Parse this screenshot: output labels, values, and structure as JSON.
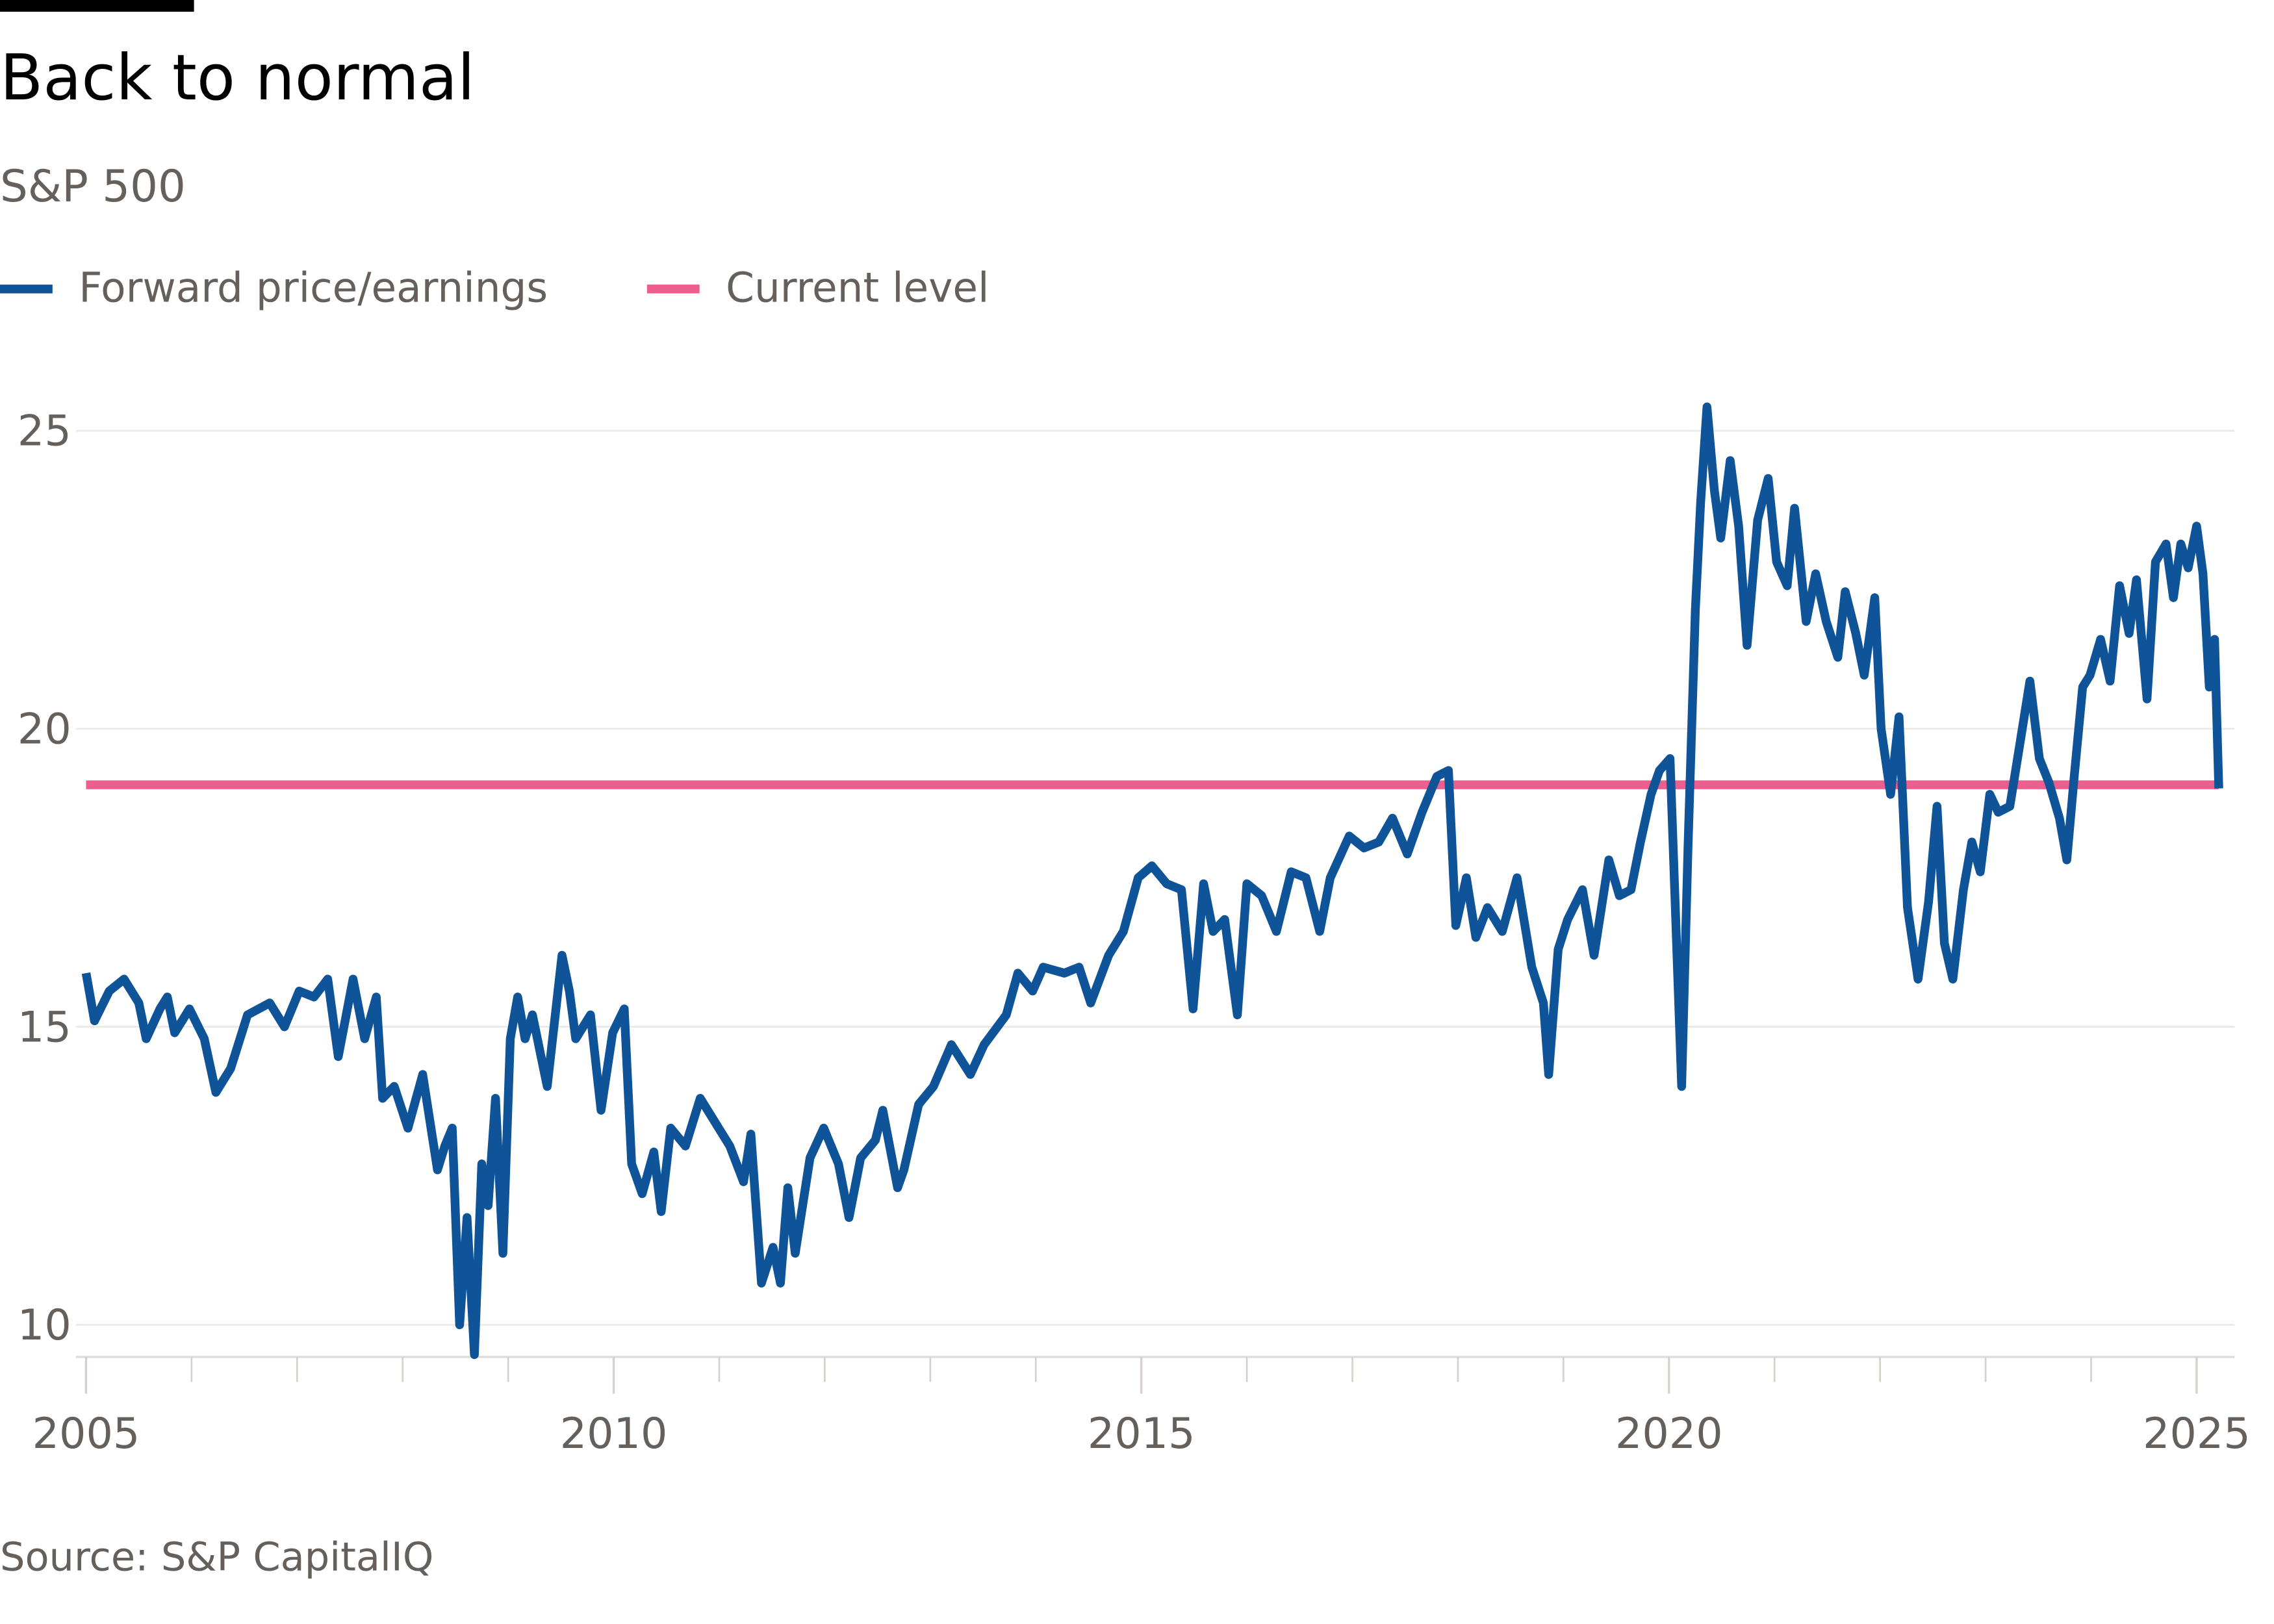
{
  "chart_data": {
    "type": "line",
    "title": "Back to normal",
    "subtitle": "S&P 500",
    "source": "Source: S&P CapitalIQ",
    "xlim": [
      2005,
      2025.36
    ],
    "xticks": [
      2005,
      2010,
      2015,
      2020,
      2025
    ],
    "x_minor_ticks": [
      2006,
      2007,
      2008,
      2009,
      2011,
      2012,
      2013,
      2014,
      2016,
      2017,
      2018,
      2019,
      2021,
      2022,
      2023,
      2024
    ],
    "ylim": [
      9.46,
      26
    ],
    "yticks": [
      10,
      15,
      20,
      25
    ],
    "grid": true,
    "series": [
      {
        "name": "Forward price/earnings",
        "color": "#0f5499",
        "x": [
          2005.0,
          2005.08,
          2005.22,
          2005.36,
          2005.5,
          2005.57,
          2005.7,
          2005.77,
          2005.84,
          2005.98,
          2006.12,
          2006.23,
          2006.37,
          2006.53,
          2006.74,
          2006.88,
          2007.02,
          2007.16,
          2007.29,
          2007.39,
          2007.53,
          2007.64,
          2007.75,
          2007.81,
          2007.92,
          2008.05,
          2008.19,
          2008.33,
          2008.4,
          2008.47,
          2008.54,
          2008.61,
          2008.68,
          2008.75,
          2008.81,
          2008.88,
          2008.95,
          2009.02,
          2009.09,
          2009.16,
          2009.23,
          2009.37,
          2009.51,
          2009.58,
          2009.64,
          2009.78,
          2009.88,
          2009.99,
          2010.1,
          2010.17,
          2010.27,
          2010.38,
          2010.45,
          2010.54,
          2010.68,
          2010.82,
          2010.96,
          2011.1,
          2011.23,
          2011.3,
          2011.4,
          2011.51,
          2011.58,
          2011.65,
          2011.72,
          2011.86,
          2011.99,
          2012.13,
          2012.23,
          2012.34,
          2012.48,
          2012.55,
          2012.69,
          2012.75,
          2012.89,
          2013.03,
          2013.2,
          2013.38,
          2013.51,
          2013.72,
          2013.83,
          2013.97,
          2014.07,
          2014.27,
          2014.41,
          2014.52,
          2014.69,
          2014.83,
          2014.97,
          2015.1,
          2015.24,
          2015.38,
          2015.49,
          2015.59,
          2015.68,
          2015.79,
          2015.91,
          2016.0,
          2016.14,
          2016.28,
          2016.42,
          2016.56,
          2016.69,
          2016.79,
          2016.97,
          2017.11,
          2017.25,
          2017.38,
          2017.52,
          2017.66,
          2017.8,
          2017.91,
          2017.98,
          2018.08,
          2018.17,
          2018.28,
          2018.42,
          2018.56,
          2018.7,
          2018.81,
          2018.86,
          2018.95,
          2019.04,
          2019.18,
          2019.29,
          2019.43,
          2019.53,
          2019.64,
          2019.73,
          2019.83,
          2019.91,
          2020.01,
          2020.07,
          2020.12,
          2020.18,
          2020.25,
          2020.3,
          2020.36,
          2020.43,
          2020.49,
          2020.58,
          2020.66,
          2020.74,
          2020.84,
          2020.94,
          2021.02,
          2021.12,
          2021.19,
          2021.3,
          2021.39,
          2021.49,
          2021.6,
          2021.67,
          2021.77,
          2021.85,
          2021.95,
          2022.01,
          2022.1,
          2022.18,
          2022.26,
          2022.36,
          2022.46,
          2022.54,
          2022.61,
          2022.69,
          2022.79,
          2022.87,
          2022.95,
          2023.04,
          2023.12,
          2023.23,
          2023.33,
          2023.42,
          2023.51,
          2023.6,
          2023.7,
          2023.77,
          2023.84,
          2023.92,
          2023.99,
          2024.09,
          2024.18,
          2024.27,
          2024.36,
          2024.43,
          2024.53,
          2024.61,
          2024.71,
          2024.78,
          2024.85,
          2024.92,
          2025.0,
          2025.06,
          2025.12,
          2025.17,
          2025.21
        ],
        "values": [
          15.9,
          15.1,
          15.6,
          15.8,
          15.4,
          14.8,
          15.3,
          15.5,
          14.9,
          15.3,
          14.8,
          13.9,
          14.3,
          15.2,
          15.4,
          15.0,
          15.6,
          15.5,
          15.8,
          14.5,
          15.8,
          14.8,
          15.5,
          13.8,
          14.0,
          13.3,
          14.2,
          12.6,
          13.0,
          13.3,
          10.0,
          11.8,
          9.5,
          12.7,
          12.0,
          13.8,
          11.2,
          14.8,
          15.5,
          14.8,
          15.2,
          14.0,
          16.2,
          15.6,
          14.8,
          15.2,
          13.6,
          14.9,
          15.3,
          12.7,
          12.2,
          12.9,
          11.9,
          13.3,
          13.0,
          13.8,
          13.4,
          13.0,
          12.4,
          13.2,
          10.7,
          11.3,
          10.7,
          12.3,
          11.2,
          12.8,
          13.3,
          12.7,
          11.8,
          12.8,
          13.1,
          13.6,
          12.3,
          12.6,
          13.7,
          14.0,
          14.7,
          14.2,
          14.7,
          15.2,
          15.9,
          15.6,
          16.0,
          15.9,
          16.0,
          15.4,
          16.2,
          16.6,
          17.5,
          17.7,
          17.4,
          17.3,
          15.3,
          17.4,
          16.6,
          16.8,
          15.2,
          17.4,
          17.2,
          16.6,
          17.6,
          17.5,
          16.6,
          17.5,
          18.2,
          18.0,
          18.1,
          18.5,
          17.9,
          18.6,
          19.2,
          19.3,
          16.7,
          17.5,
          16.5,
          17.0,
          16.6,
          17.5,
          16.0,
          15.4,
          14.2,
          16.3,
          16.8,
          17.3,
          16.2,
          17.8,
          17.2,
          17.3,
          18.1,
          18.9,
          19.3,
          19.5,
          16.5,
          14.0,
          18.0,
          22.0,
          23.8,
          25.4,
          24.0,
          23.2,
          24.5,
          23.4,
          21.4,
          23.5,
          24.2,
          22.8,
          22.4,
          23.7,
          21.8,
          22.6,
          21.8,
          21.2,
          22.3,
          21.6,
          20.9,
          22.2,
          20.0,
          18.9,
          20.2,
          17.0,
          15.8,
          17.1,
          18.7,
          16.4,
          15.8,
          17.3,
          18.1,
          17.6,
          18.9,
          18.6,
          18.7,
          19.8,
          20.8,
          19.5,
          19.1,
          18.5,
          17.8,
          19.2,
          20.7,
          20.9,
          21.5,
          20.8,
          22.4,
          21.6,
          22.5,
          20.5,
          22.8,
          23.1,
          22.2,
          23.1,
          22.7,
          23.4,
          22.6,
          20.7,
          21.5,
          19.0
        ]
      },
      {
        "name": "Current level",
        "color": "#eb5e8d",
        "x": [
          2005.0,
          2025.21
        ],
        "values": [
          19.06,
          19.06
        ]
      }
    ]
  }
}
